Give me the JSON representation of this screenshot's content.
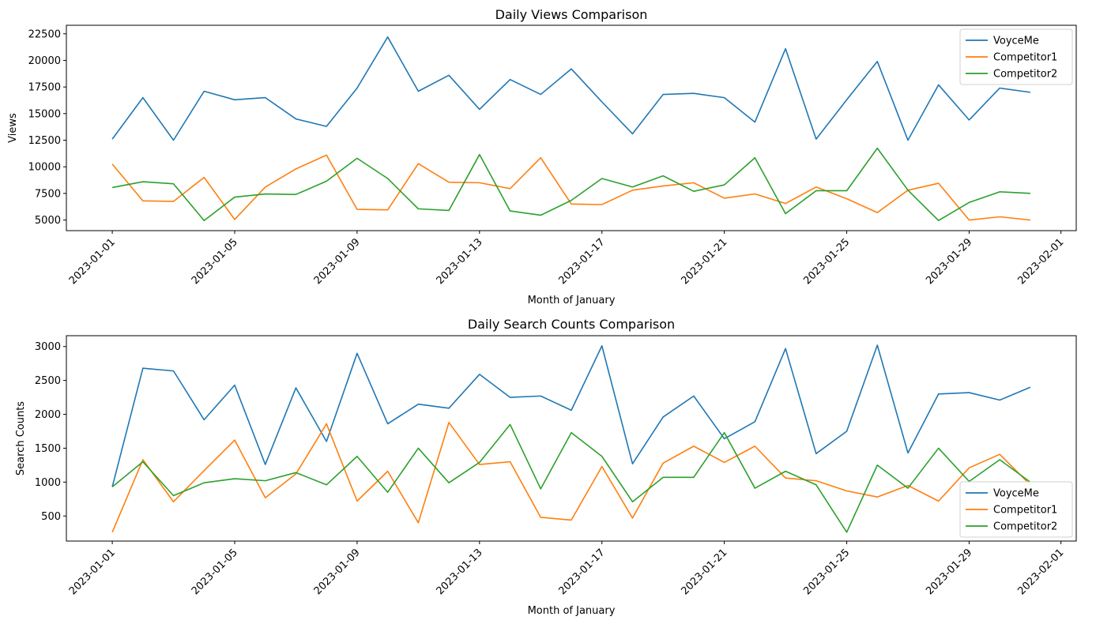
{
  "chart_data": [
    {
      "type": "line",
      "title": "Daily Views Comparison",
      "xlabel": "Month of January",
      "ylabel": "Views",
      "x": [
        "2023-01-01",
        "2023-01-02",
        "2023-01-03",
        "2023-01-04",
        "2023-01-05",
        "2023-01-06",
        "2023-01-07",
        "2023-01-08",
        "2023-01-09",
        "2023-01-10",
        "2023-01-11",
        "2023-01-12",
        "2023-01-13",
        "2023-01-14",
        "2023-01-15",
        "2023-01-16",
        "2023-01-17",
        "2023-01-18",
        "2023-01-19",
        "2023-01-20",
        "2023-01-21",
        "2023-01-22",
        "2023-01-23",
        "2023-01-24",
        "2023-01-25",
        "2023-01-26",
        "2023-01-27",
        "2023-01-28",
        "2023-01-29",
        "2023-01-30",
        "2023-01-31"
      ],
      "xlim": [
        "2022-12-30T12:00",
        "2023-02-01T12:00"
      ],
      "x_ticks": [
        "2023-01-01",
        "2023-01-05",
        "2023-01-09",
        "2023-01-13",
        "2023-01-17",
        "2023-01-21",
        "2023-01-25",
        "2023-01-29",
        "2023-02-01"
      ],
      "ylim": [
        4000,
        23300
      ],
      "y_ticks": [
        5000,
        7500,
        10000,
        12500,
        15000,
        17500,
        20000,
        22500
      ],
      "grid": false,
      "legend_position": "upper right",
      "series": [
        {
          "name": "VoyceMe",
          "color": "#1f77b4",
          "values": [
            12600,
            16500,
            12500,
            17100,
            16300,
            16500,
            14500,
            13800,
            17400,
            22200,
            17100,
            18600,
            15400,
            18200,
            16800,
            19200,
            16100,
            13100,
            16800,
            16900,
            16500,
            14200,
            21100,
            12600,
            16300,
            19900,
            12500,
            17700,
            14400,
            17400,
            17000
          ]
        },
        {
          "name": "Competitor1",
          "color": "#ff7f0e",
          "values": [
            10250,
            6800,
            6750,
            9000,
            5050,
            8100,
            9800,
            11100,
            6000,
            5950,
            10300,
            8550,
            8500,
            7950,
            10850,
            6500,
            6450,
            7800,
            8200,
            8500,
            7050,
            7450,
            6550,
            8100,
            7000,
            5700,
            7800,
            8450,
            5000,
            5300,
            5000
          ]
        },
        {
          "name": "Competitor2",
          "color": "#2ca02c",
          "values": [
            8050,
            8600,
            8400,
            4950,
            7150,
            7450,
            7400,
            8650,
            10800,
            8900,
            6050,
            5900,
            11150,
            5850,
            5450,
            6850,
            8900,
            8100,
            9150,
            7700,
            8300,
            10850,
            5600,
            7750,
            7750,
            11750,
            7800,
            4950,
            6650,
            7650,
            7500
          ]
        }
      ]
    },
    {
      "type": "line",
      "title": "Daily Search Counts Comparison",
      "xlabel": "Month of January",
      "ylabel": "Search Counts",
      "x": [
        "2023-01-01",
        "2023-01-02",
        "2023-01-03",
        "2023-01-04",
        "2023-01-05",
        "2023-01-06",
        "2023-01-07",
        "2023-01-08",
        "2023-01-09",
        "2023-01-10",
        "2023-01-11",
        "2023-01-12",
        "2023-01-13",
        "2023-01-14",
        "2023-01-15",
        "2023-01-16",
        "2023-01-17",
        "2023-01-18",
        "2023-01-19",
        "2023-01-20",
        "2023-01-21",
        "2023-01-22",
        "2023-01-23",
        "2023-01-24",
        "2023-01-25",
        "2023-01-26",
        "2023-01-27",
        "2023-01-28",
        "2023-01-29",
        "2023-01-30",
        "2023-01-31"
      ],
      "xlim": [
        "2022-12-30T12:00",
        "2023-02-01T12:00"
      ],
      "x_ticks": [
        "2023-01-01",
        "2023-01-05",
        "2023-01-09",
        "2023-01-13",
        "2023-01-17",
        "2023-01-21",
        "2023-01-25",
        "2023-01-29",
        "2023-02-01"
      ],
      "ylim": [
        130,
        3160
      ],
      "y_ticks": [
        500,
        1000,
        1500,
        2000,
        2500,
        3000
      ],
      "grid": false,
      "legend_position": "lower right",
      "series": [
        {
          "name": "VoyceMe",
          "color": "#1f77b4",
          "values": [
            930,
            2680,
            2640,
            1920,
            2430,
            1260,
            2390,
            1600,
            2900,
            1860,
            2150,
            2090,
            2590,
            2250,
            2270,
            2060,
            3010,
            1270,
            1960,
            2270,
            1640,
            1890,
            2970,
            1420,
            1750,
            3020,
            1430,
            2300,
            2320,
            2210,
            2400
          ]
        },
        {
          "name": "Competitor1",
          "color": "#ff7f0e",
          "values": [
            260,
            1330,
            710,
            1170,
            1620,
            770,
            1120,
            1860,
            720,
            1160,
            400,
            1880,
            1260,
            1300,
            480,
            440,
            1230,
            470,
            1280,
            1530,
            1290,
            1530,
            1060,
            1020,
            870,
            780,
            950,
            720,
            1210,
            1410,
            960
          ]
        },
        {
          "name": "Competitor2",
          "color": "#2ca02c",
          "values": [
            930,
            1300,
            800,
            990,
            1050,
            1020,
            1140,
            960,
            1380,
            850,
            1500,
            990,
            1290,
            1850,
            900,
            1730,
            1380,
            710,
            1070,
            1070,
            1730,
            910,
            1160,
            960,
            260,
            1250,
            910,
            1500,
            1010,
            1330,
            1000
          ]
        }
      ]
    }
  ]
}
